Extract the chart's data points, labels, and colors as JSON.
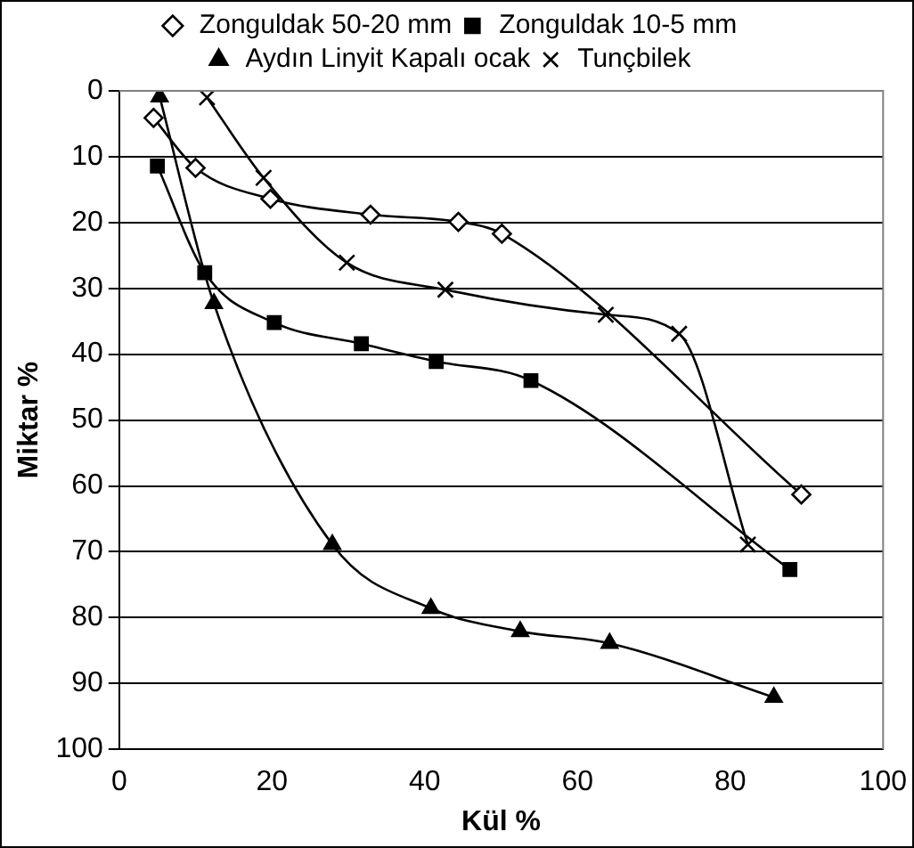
{
  "chart_data": {
    "type": "line",
    "xlabel": "Kül %",
    "ylabel": "Miktar %",
    "xlim": [
      0,
      100
    ],
    "xticks": [
      0,
      20,
      40,
      60,
      80,
      100
    ],
    "ylim": [
      100,
      0
    ],
    "yticks": [
      0,
      10,
      20,
      30,
      40,
      50,
      60,
      70,
      80,
      90,
      100
    ],
    "grid": "y",
    "legend": "top",
    "line_style": "solid",
    "series": [
      {
        "name": "Zonguldak 50-20 mm",
        "color": "#000000",
        "marker": "diamond",
        "x": [
          4.5,
          10,
          19.8,
          32.9,
          44.4,
          50.1,
          89.3
        ],
        "values": [
          4.1,
          11.7,
          16.4,
          18.8,
          19.9,
          21.7,
          61.3
        ]
      },
      {
        "name": "Zonguldak 10-5 mm",
        "color": "#000000",
        "marker": "square",
        "x": [
          5,
          11.2,
          20.3,
          31.7,
          41.5,
          53.9,
          87.8
        ],
        "values": [
          11.4,
          27.6,
          35.2,
          38.4,
          41.1,
          44,
          72.7
        ]
      },
      {
        "name": "Aydın Linyit Kapalı ocak",
        "color": "#000000",
        "marker": "triangle",
        "x": [
          5.3,
          12.4,
          27.9,
          40.8,
          52.5,
          64.2,
          85.7
        ],
        "values": [
          0.9,
          32.3,
          68.9,
          78.6,
          82.1,
          83.9,
          92.1
        ]
      },
      {
        "name": "Tunçbilek",
        "color": "#000000",
        "marker": "cross",
        "x": [
          11.5,
          18.9,
          29.8,
          42.7,
          63.7,
          73.3,
          82.3
        ],
        "values": [
          1,
          13.2,
          26.1,
          30.2,
          34,
          36.9,
          68.9
        ]
      }
    ]
  }
}
